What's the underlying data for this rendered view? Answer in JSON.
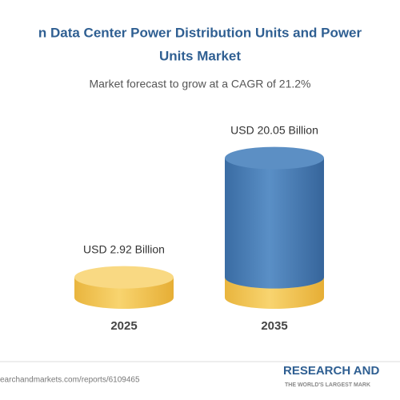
{
  "chart_data": {
    "type": "cylinder",
    "title": [
      "n Data Center Power Distribution Units and Power",
      "Units Market"
    ],
    "subtitle": "Market forecast to grow at a CAGR of 21.2%",
    "categories": [
      "2025",
      "2035"
    ],
    "values": [
      2.92,
      20.05
    ],
    "value_labels": [
      "USD 2.92 Billion",
      "USD 20.05 Billion"
    ],
    "colors": [
      "#f4c452",
      "#4a7db3"
    ],
    "source": "earchandmarkets.com/reports/6109465",
    "logo": "RESEARCH AND",
    "tagline": "THE WORLD'S LARGEST MARK"
  }
}
